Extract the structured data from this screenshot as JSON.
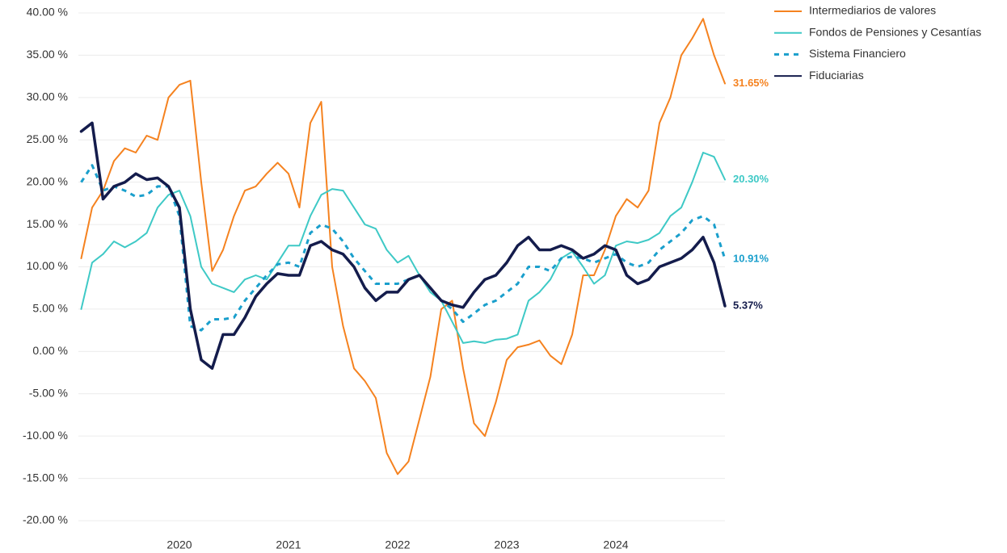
{
  "chart_data": {
    "type": "line",
    "x": [
      2019.1,
      2019.2,
      2019.3,
      2019.4,
      2019.5,
      2019.6,
      2019.7,
      2019.8,
      2019.9,
      2020.0,
      2020.1,
      2020.2,
      2020.3,
      2020.4,
      2020.5,
      2020.6,
      2020.7,
      2020.8,
      2020.9,
      2021.0,
      2021.1,
      2021.2,
      2021.3,
      2021.4,
      2021.5,
      2021.6,
      2021.7,
      2021.8,
      2021.9,
      2022.0,
      2022.1,
      2022.2,
      2022.3,
      2022.4,
      2022.5,
      2022.6,
      2022.7,
      2022.8,
      2022.9,
      2023.0,
      2023.1,
      2023.2,
      2023.3,
      2023.4,
      2023.5,
      2023.6,
      2023.7,
      2023.8,
      2023.9,
      2024.0,
      2024.1,
      2024.2,
      2024.3,
      2024.4,
      2024.5,
      2024.6,
      2024.7,
      2024.8,
      2024.9,
      2025.0
    ],
    "xlim": [
      2019.1,
      2025.0
    ],
    "xticks": [
      2020,
      2021,
      2022,
      2023,
      2024
    ],
    "ylim": [
      -20,
      40
    ],
    "yticks": [
      {
        "value": -20,
        "label": "-20.00 %"
      },
      {
        "value": -15,
        "label": "-15.00 %"
      },
      {
        "value": -10,
        "label": "-10.00 %"
      },
      {
        "value": -5,
        "label": "-5.00 %"
      },
      {
        "value": 0,
        "label": "0.00 %"
      },
      {
        "value": 5,
        "label": "5.00 %"
      },
      {
        "value": 10,
        "label": "10.00 %"
      },
      {
        "value": 15,
        "label": "15.00 %"
      },
      {
        "value": 20,
        "label": "20.00 %"
      },
      {
        "value": 25,
        "label": "25.00 %"
      },
      {
        "value": 30,
        "label": "30.00 %"
      },
      {
        "value": 35,
        "label": "35.00 %"
      },
      {
        "value": 40,
        "label": "40.00 %"
      }
    ],
    "grid": true,
    "legend": "top-right",
    "series": [
      {
        "name": "Intermediarios de valores",
        "color": "#f5821f",
        "width": 2,
        "style": "solid",
        "values": [
          11,
          17,
          19,
          22.5,
          24,
          23.5,
          25.5,
          25,
          30,
          31.5,
          32,
          20,
          9.5,
          12,
          16,
          19,
          19.5,
          21,
          22.3,
          21,
          17,
          27,
          29.5,
          10,
          3,
          -2,
          -3.5,
          -5.5,
          -12,
          -14.5,
          -13,
          -8,
          -3,
          5,
          6,
          -2,
          -8.5,
          -10,
          -6,
          -1,
          0.5,
          0.8,
          1.3,
          -0.5,
          -1.5,
          2,
          9,
          9,
          12,
          16,
          18,
          17,
          19,
          27,
          30,
          35,
          37,
          39.3,
          35,
          31.65
        ],
        "value_labels": [
          null,
          null,
          null,
          null,
          null,
          null,
          null,
          null,
          null,
          null,
          null,
          null,
          null,
          null,
          null,
          null,
          null,
          null,
          null,
          null,
          null,
          null,
          null,
          null,
          null,
          null,
          null,
          null,
          null,
          null,
          null,
          null,
          null,
          null,
          null,
          null,
          null,
          null,
          null,
          null,
          null,
          null,
          null,
          null,
          null,
          null,
          null,
          null,
          null,
          null,
          null,
          null,
          null,
          null,
          null,
          null,
          null,
          null,
          null,
          "31.65%"
        ]
      },
      {
        "name": "Fondos de Pensiones y Cesantías",
        "color": "#3ec9c6",
        "width": 2,
        "style": "solid",
        "values": [
          5,
          10.5,
          11.5,
          13,
          12.3,
          13,
          14,
          17,
          18.5,
          19,
          16,
          10,
          8,
          7.5,
          7,
          8.5,
          9,
          8.5,
          10.5,
          12.5,
          12.5,
          16,
          18.5,
          19.2,
          19,
          17,
          15,
          14.5,
          12,
          10.5,
          11.3,
          9,
          7,
          6,
          3.5,
          1,
          1.2,
          1,
          1.4,
          1.5,
          2,
          6,
          7,
          8.5,
          11,
          11.8,
          10,
          8,
          9,
          12.5,
          13,
          12.8,
          13.2,
          14,
          16,
          17,
          20,
          23.5,
          23,
          20.3
        ],
        "value_labels": [
          null,
          null,
          null,
          null,
          null,
          null,
          null,
          null,
          null,
          null,
          null,
          null,
          null,
          null,
          null,
          null,
          null,
          null,
          null,
          null,
          null,
          null,
          null,
          null,
          null,
          null,
          null,
          null,
          null,
          null,
          null,
          null,
          null,
          null,
          null,
          null,
          null,
          null,
          null,
          null,
          null,
          null,
          null,
          null,
          null,
          null,
          null,
          null,
          null,
          null,
          null,
          null,
          null,
          null,
          null,
          null,
          null,
          null,
          null,
          "20.30%"
        ]
      },
      {
        "name": "Sistema Financiero",
        "color": "#1a9fcc",
        "width": 3,
        "style": "dashed",
        "values": [
          20,
          22,
          19,
          19.5,
          19,
          18.3,
          18.5,
          19.5,
          19.5,
          16,
          3,
          2.5,
          3.8,
          3.8,
          4,
          6,
          7.5,
          9,
          10.3,
          10.5,
          10,
          14,
          15,
          14.5,
          13,
          11,
          9.5,
          8,
          8,
          8,
          8.5,
          9,
          7.5,
          6,
          5,
          3.5,
          4.5,
          5.5,
          6,
          7,
          8,
          10,
          10,
          9.5,
          11,
          11.2,
          11,
          10.5,
          11,
          11.5,
          10.5,
          10,
          10.5,
          12,
          13,
          14,
          15.5,
          16,
          15,
          10.91
        ],
        "value_labels": [
          null,
          null,
          null,
          null,
          null,
          null,
          null,
          null,
          null,
          null,
          null,
          null,
          null,
          null,
          null,
          null,
          null,
          null,
          null,
          null,
          null,
          null,
          null,
          null,
          null,
          null,
          null,
          null,
          null,
          null,
          null,
          null,
          null,
          null,
          null,
          null,
          null,
          null,
          null,
          null,
          null,
          null,
          null,
          null,
          null,
          null,
          null,
          null,
          null,
          null,
          null,
          null,
          null,
          null,
          null,
          null,
          null,
          null,
          null,
          "10.91%"
        ]
      },
      {
        "name": "Fiduciarias",
        "color": "#141c4c",
        "width": 3.5,
        "style": "solid",
        "values": [
          26,
          27,
          18,
          19.5,
          20,
          21,
          20.3,
          20.5,
          19.5,
          17,
          5,
          -1,
          -2,
          2,
          2,
          4,
          6.5,
          8,
          9.2,
          9,
          9,
          12.5,
          13,
          12,
          11.5,
          10,
          7.5,
          6,
          7,
          7,
          8.5,
          9,
          7.5,
          6,
          5.5,
          5.2,
          7,
          8.5,
          9,
          10.5,
          12.5,
          13.5,
          12,
          12,
          12.5,
          12,
          11,
          11.5,
          12.5,
          12,
          9,
          8,
          8.5,
          10,
          10.5,
          11,
          12,
          13.5,
          10.5,
          5.37
        ],
        "value_labels": [
          null,
          null,
          null,
          null,
          null,
          null,
          null,
          null,
          null,
          null,
          null,
          null,
          null,
          null,
          null,
          null,
          null,
          null,
          null,
          null,
          null,
          null,
          null,
          null,
          null,
          null,
          null,
          null,
          null,
          null,
          null,
          null,
          null,
          null,
          null,
          null,
          null,
          null,
          null,
          null,
          null,
          null,
          null,
          null,
          null,
          null,
          null,
          null,
          null,
          null,
          null,
          null,
          null,
          null,
          null,
          null,
          null,
          null,
          null,
          "5.37%"
        ]
      }
    ]
  }
}
